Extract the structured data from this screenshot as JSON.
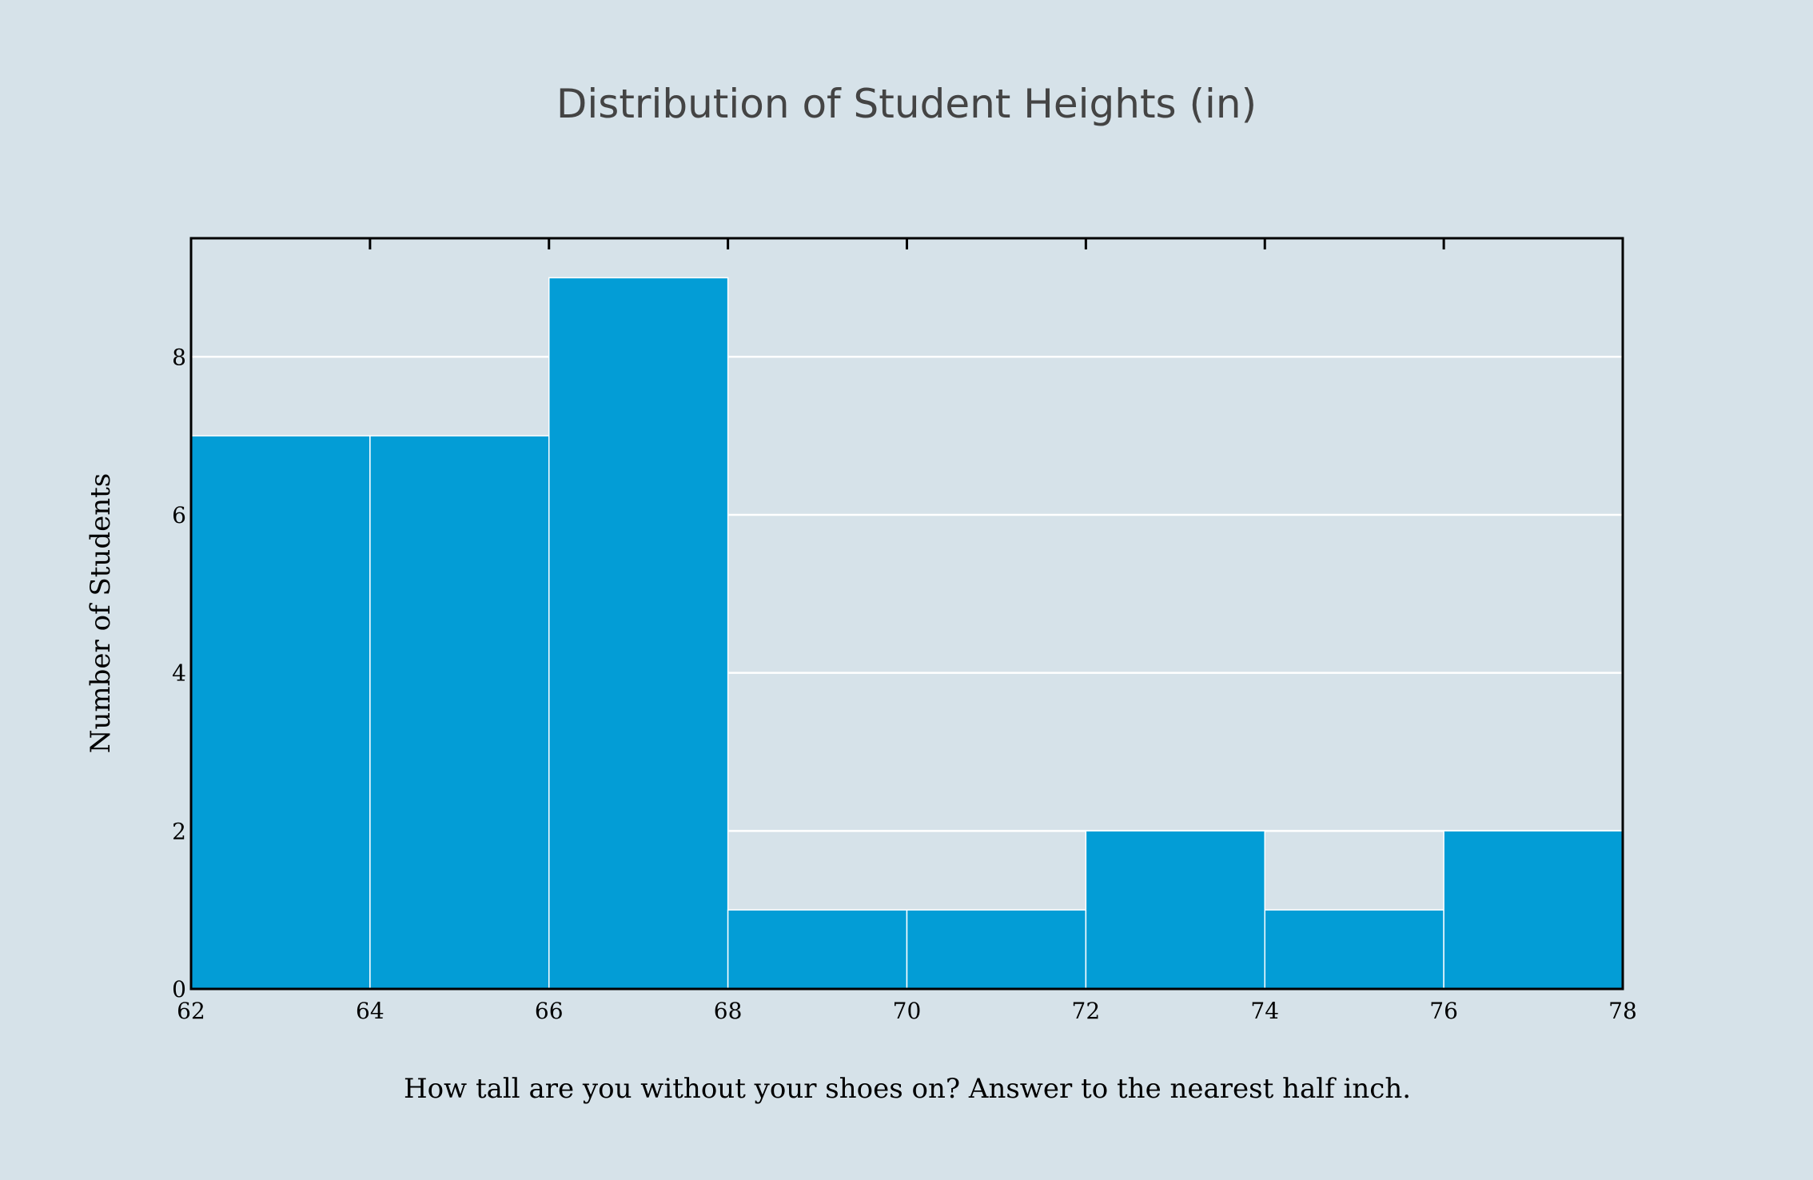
{
  "chart_data": {
    "type": "bar",
    "title": "Distribution of Student Heights (in)",
    "xlabel": "How tall are you without your shoes on? Answer to the nearest half inch.",
    "ylabel": "Number of Students",
    "bins": [
      {
        "start": 62,
        "end": 64,
        "count": 7
      },
      {
        "start": 64,
        "end": 66,
        "count": 7
      },
      {
        "start": 66,
        "end": 68,
        "count": 9
      },
      {
        "start": 68,
        "end": 70,
        "count": 1
      },
      {
        "start": 70,
        "end": 72,
        "count": 1
      },
      {
        "start": 72,
        "end": 74,
        "count": 2
      },
      {
        "start": 74,
        "end": 76,
        "count": 1
      },
      {
        "start": 76,
        "end": 78,
        "count": 2
      }
    ],
    "xlim": [
      62,
      78
    ],
    "ylim": [
      0,
      9.5
    ],
    "xticks": [
      "62",
      "64",
      "66",
      "68",
      "70",
      "72",
      "74",
      "76",
      "78"
    ],
    "yticks": [
      "0",
      "2",
      "4",
      "6",
      "8"
    ],
    "grid": true,
    "colors": {
      "background": "#d6e2e9",
      "bar": "#039dd6",
      "bar_edge": "#ffffff",
      "grid": "#ffffff",
      "axis": "#000000"
    }
  }
}
